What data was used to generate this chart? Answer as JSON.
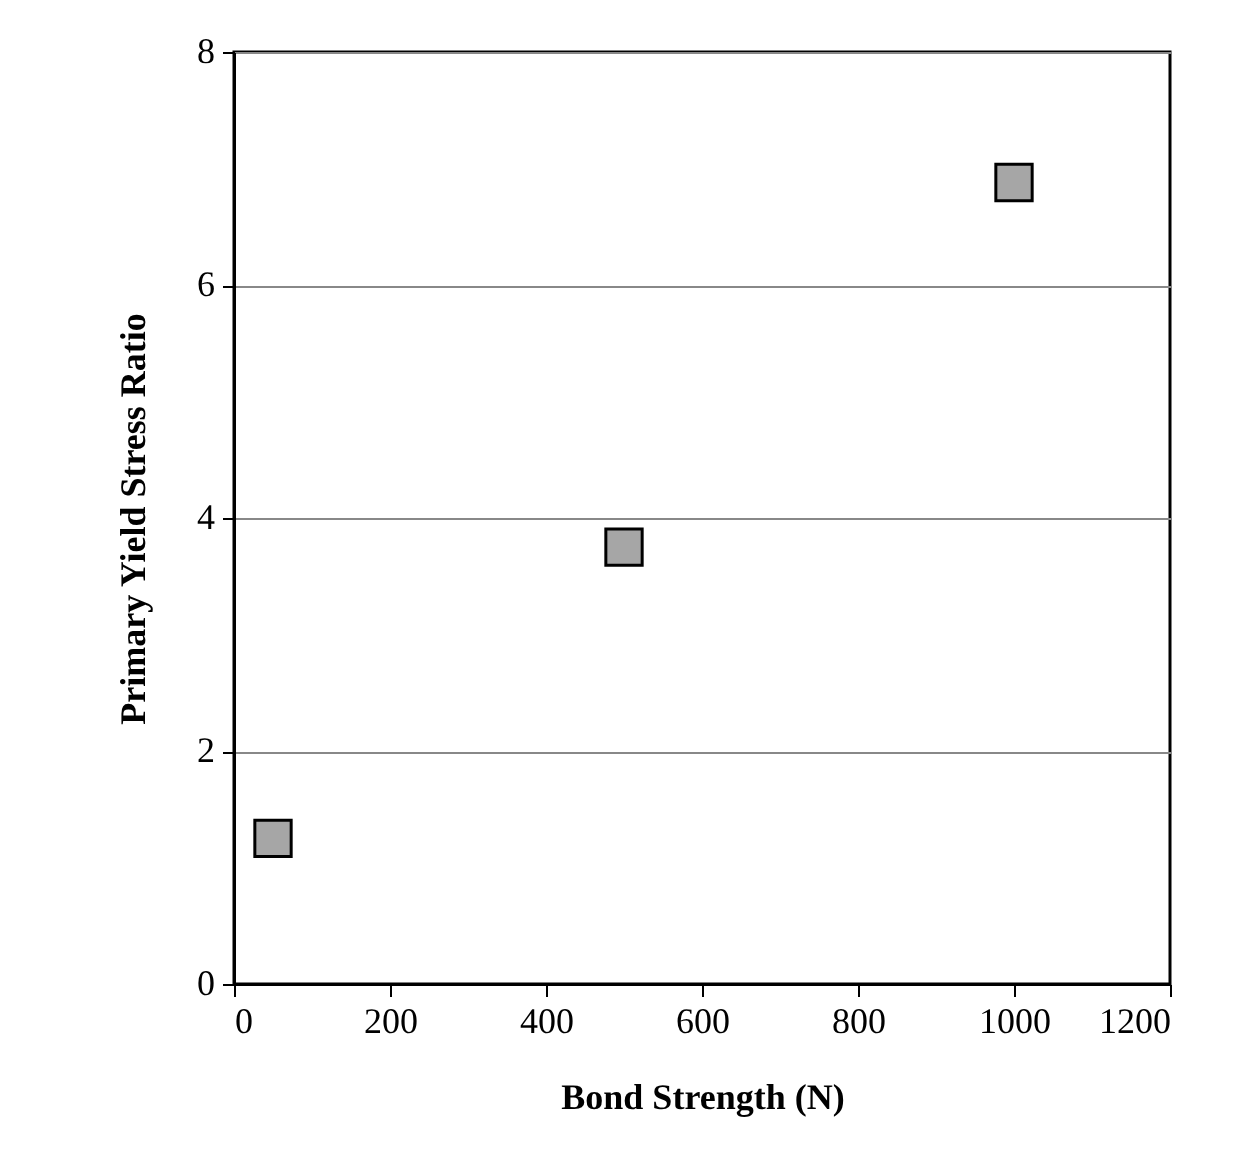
{
  "chart_data": {
    "type": "scatter",
    "xlabel": "Bond Strength (N)",
    "ylabel": "Primary Yield Stress Ratio",
    "x": [
      50,
      500,
      1000
    ],
    "series": [
      {
        "color": "#a6a6a6",
        "values": [
          1.25,
          3.75,
          6.88
        ]
      }
    ],
    "xlim": [
      0,
      1200
    ],
    "xticks": [
      0,
      200,
      400,
      600,
      800,
      1000,
      1200
    ],
    "ylim": [
      0,
      8
    ],
    "yticks": [
      0,
      2,
      4,
      6,
      8
    ],
    "grid": "y",
    "marker": "square"
  }
}
